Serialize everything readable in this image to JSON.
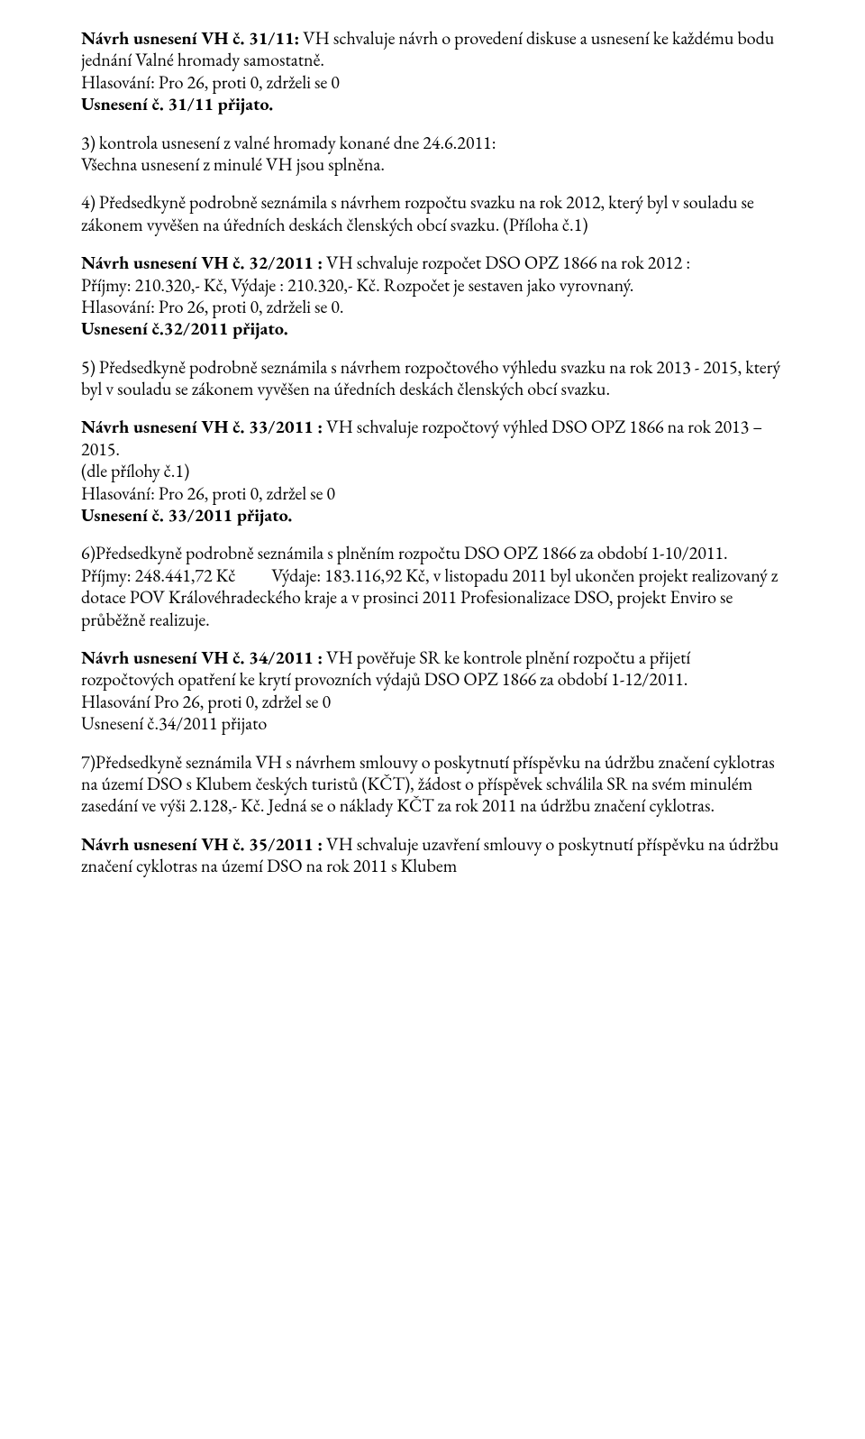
{
  "p1": {
    "pre_bold": "Návrh usnesení VH č. 31/11:",
    "line1_rest": " VH schvaluje návrh o provedení diskuse a usnesení ke každému bodu jednání Valné hromady samostatně.",
    "line2": "Hlasování: Pro 26, proti 0, zdrželi se 0",
    "line3_bold": "Usnesení č. 31/11 přijato."
  },
  "p2": {
    "line1": "3) kontrola usnesení z valné hromady konané dne 24.6.2011:",
    "line2": "Všechna usnesení z minulé VH jsou splněna."
  },
  "p3": {
    "text": "4) Předsedkyně podrobně seznámila s návrhem rozpočtu svazku na rok 2012, který byl v souladu se zákonem vyvěšen na úředních deskách členských obcí svazku. (Příloha č.1)"
  },
  "p4": {
    "pre_bold": "Návrh usnesení VH č. 32/2011 :",
    "rest1": " VH schvaluje rozpočet DSO OPZ 1866 na rok 2012 :",
    "line2": "Příjmy: 210.320,- Kč, Výdaje : 210.320,- Kč. Rozpočet je sestaven jako vyrovnaný.",
    "line3": "Hlasování: Pro 26,  proti 0,  zdrželi se 0.",
    "line4_bold": "Usnesení č.32/2011  přijato."
  },
  "p5": {
    "text": "5) Předsedkyně podrobně seznámila s návrhem rozpočtového výhledu  svazku na rok 2013 - 2015, který byl v souladu se zákonem vyvěšen na úředních deskách členských obcí svazku."
  },
  "p6": {
    "pre_bold": "Návrh usnesení VH č. 33/2011 :",
    "rest1": " VH schvaluje rozpočtový výhled DSO OPZ 1866 na rok 2013 – 2015.",
    "line2": "(dle přílohy č.1)",
    "line3": "Hlasování: Pro 26, proti 0, zdržel se 0",
    "line4_bold": "Usnesení č. 33/2011 přijato."
  },
  "p7": {
    "line1": "6)Předsedkyně podrobně seznámila s plněním rozpočtu DSO OPZ 1866 za období 1-10/2011.",
    "line2a": "Příjmy: 248.441,72 Kč",
    "line2b": "Výdaje: 183.116,92 Kč, v listopadu 2011 byl ukončen projekt realizovaný z dotace POV Královéhradeckého kraje a v prosinci 2011 Profesionalizace DSO, projekt Enviro se průběžně realizuje."
  },
  "p8": {
    "pre_bold": "Návrh usnesení VH č. 34/2011 :",
    "rest1": " VH pověřuje SR ke kontrole plnění rozpočtu a přijetí rozpočtových opatření ke krytí provozních výdajů DSO OPZ 1866 za období 1-12/2011.",
    "line2": "Hlasování Pro 26, proti 0, zdržel se 0",
    "line3": "Usnesení č.34/2011 přijato"
  },
  "p9": {
    "text": "7)Předsedkyně seznámila VH s návrhem smlouvy o poskytnutí příspěvku na údržbu značení cyklotras na území DSO s Klubem českých turistů (KČT), žádost o příspěvek schválila SR na svém minulém zasedání ve výši 2.128,- Kč. Jedná se o náklady KČT za rok 2011 na údržbu značení cyklotras."
  },
  "p10": {
    "pre_bold": "Návrh usnesení VH č. 35/2011 :",
    "rest1": " VH schvaluje uzavření smlouvy o poskytnutí příspěvku  na údržbu značení cyklotras na území DSO na rok 2011 s Klubem"
  }
}
